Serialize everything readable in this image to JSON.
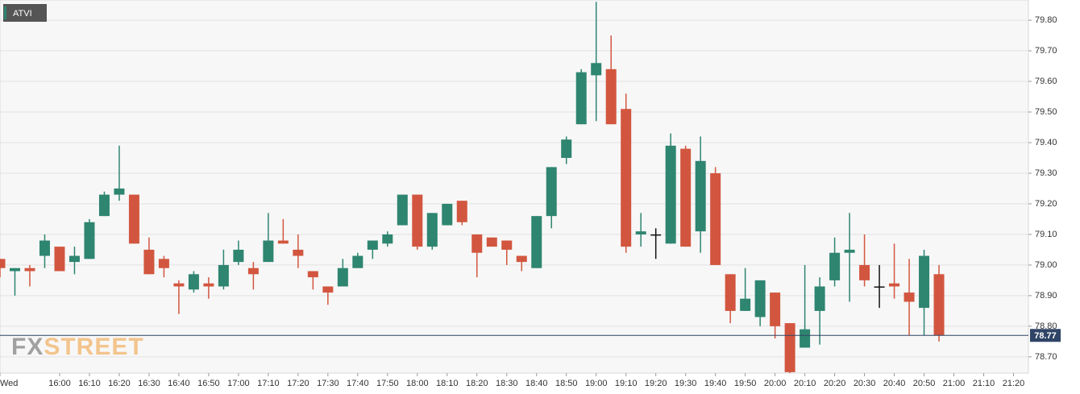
{
  "chart_data": {
    "type": "candlestick",
    "legend": "ATVI",
    "watermark": {
      "first": "FX",
      "second": "STREET"
    },
    "x": [
      "15:40",
      "15:45",
      "15:50",
      "15:55",
      "16:00",
      "16:05",
      "16:10",
      "16:15",
      "16:20",
      "16:25",
      "16:30",
      "16:35",
      "16:40",
      "16:45",
      "16:50",
      "16:55",
      "17:00",
      "17:05",
      "17:10",
      "17:15",
      "17:20",
      "17:25",
      "17:30",
      "17:35",
      "17:40",
      "17:45",
      "17:50",
      "17:55",
      "18:00",
      "18:05",
      "18:10",
      "18:15",
      "18:20",
      "18:25",
      "18:30",
      "18:35",
      "18:40",
      "18:45",
      "18:50",
      "18:55",
      "19:00",
      "19:05",
      "19:10",
      "19:15",
      "19:20",
      "19:25",
      "19:30",
      "19:35",
      "19:40",
      "19:45",
      "19:50",
      "19:55",
      "20:00",
      "20:05",
      "20:10",
      "20:15",
      "20:20",
      "20:25",
      "20:30",
      "20:35",
      "20:40",
      "20:45",
      "20:50",
      "20:55"
    ],
    "open": [
      79.02,
      78.98,
      78.99,
      79.03,
      79.06,
      79.01,
      79.02,
      79.16,
      79.23,
      79.23,
      79.05,
      79.02,
      78.94,
      78.92,
      78.94,
      78.93,
      79.01,
      78.99,
      79.01,
      79.08,
      79.05,
      78.98,
      78.93,
      78.93,
      78.99,
      79.05,
      79.07,
      79.13,
      79.23,
      79.06,
      79.13,
      79.21,
      79.1,
      79.09,
      79.08,
      79.03,
      78.99,
      79.16,
      79.35,
      79.46,
      79.62,
      79.64,
      79.51,
      79.1,
      79.1,
      79.07,
      79.38,
      79.11,
      79.3,
      78.97,
      78.85,
      78.83,
      78.91,
      78.81,
      78.73,
      78.85,
      78.95,
      79.04,
      79.0,
      78.93,
      78.94,
      78.91,
      78.86,
      78.97
    ],
    "high": [
      79.02,
      78.99,
      79.0,
      79.1,
      79.06,
      79.06,
      79.15,
      79.24,
      79.39,
      79.23,
      79.09,
      79.03,
      78.95,
      78.98,
      78.96,
      79.05,
      79.08,
      79.01,
      79.17,
      79.15,
      79.1,
      78.98,
      78.93,
      79.02,
      79.04,
      79.08,
      79.11,
      79.23,
      79.23,
      79.17,
      79.2,
      79.21,
      79.1,
      79.09,
      79.08,
      79.03,
      79.16,
      79.32,
      79.42,
      79.64,
      79.86,
      79.75,
      79.56,
      79.17,
      79.12,
      79.43,
      79.39,
      79.42,
      79.32,
      78.97,
      78.99,
      78.95,
      78.91,
      78.81,
      79.0,
      78.96,
      79.09,
      79.17,
      79.1,
      79.0,
      79.07,
      79.02,
      79.05,
      79.0
    ],
    "low": [
      78.96,
      78.9,
      78.93,
      78.99,
      78.98,
      78.97,
      79.02,
      79.16,
      79.21,
      79.07,
      78.97,
      78.96,
      78.84,
      78.91,
      78.89,
      78.92,
      79.0,
      78.92,
      79.01,
      79.07,
      78.99,
      78.92,
      78.87,
      78.93,
      78.99,
      79.02,
      79.06,
      79.13,
      79.05,
      79.05,
      79.13,
      79.13,
      78.96,
      79.06,
      79.0,
      78.98,
      78.99,
      79.12,
      79.33,
      79.46,
      79.47,
      79.46,
      79.04,
      79.06,
      79.02,
      79.07,
      79.06,
      79.04,
      79.0,
      78.81,
      78.85,
      78.8,
      78.76,
      78.64,
      78.73,
      78.74,
      78.93,
      78.88,
      78.93,
      78.86,
      78.89,
      78.77,
      78.77,
      78.75
    ],
    "close": [
      78.99,
      78.99,
      78.98,
      79.08,
      78.98,
      79.03,
      79.14,
      79.23,
      79.25,
      79.07,
      78.97,
      78.99,
      78.93,
      78.97,
      78.93,
      79.0,
      79.05,
      78.97,
      79.08,
      79.07,
      79.03,
      78.96,
      78.91,
      78.99,
      79.03,
      79.08,
      79.1,
      79.23,
      79.06,
      79.17,
      79.2,
      79.14,
      79.04,
      79.06,
      79.05,
      79.01,
      79.16,
      79.32,
      79.41,
      79.63,
      79.66,
      79.46,
      79.06,
      79.11,
      79.1,
      79.39,
      79.06,
      79.34,
      79.0,
      78.85,
      78.89,
      78.95,
      78.8,
      78.65,
      78.79,
      78.93,
      79.04,
      79.05,
      78.95,
      78.93,
      78.93,
      78.88,
      79.03,
      78.77
    ],
    "colors": {
      "up": "#2e8570",
      "down": "#d2563f",
      "flat": "#111111"
    },
    "current_price": 78.77,
    "current_price_color": "#2f4466",
    "xlim": [
      "15:40",
      "21:25"
    ],
    "ylim": [
      78.647,
      79.866
    ],
    "xticks": [
      {
        "value": "15:40",
        "label": "Wed"
      },
      "16:00",
      "16:10",
      "16:20",
      "16:30",
      "16:40",
      "16:50",
      "17:00",
      "17:10",
      "17:20",
      "17:30",
      "17:40",
      "17:50",
      "18:00",
      "18:10",
      "18:20",
      "18:30",
      "18:40",
      "18:50",
      "19:00",
      "19:10",
      "19:20",
      "19:30",
      "19:40",
      "19:50",
      "20:00",
      "20:10",
      "20:20",
      "20:30",
      "20:40",
      "20:50",
      "21:00",
      "21:10",
      "21:20"
    ],
    "yticks": [
      {
        "value": 78.7,
        "label": "78.70"
      },
      {
        "value": 78.8,
        "label": "78.80"
      },
      {
        "value": 78.9,
        "label": "78.90"
      },
      {
        "value": 79.0,
        "label": "79.00"
      },
      {
        "value": 79.1,
        "label": "79.10"
      },
      {
        "value": 79.2,
        "label": "79.20"
      },
      {
        "value": 79.3,
        "label": "79.30"
      },
      {
        "value": 79.4,
        "label": "79.40"
      },
      {
        "value": 79.5,
        "label": "79.50"
      },
      {
        "value": 79.6,
        "label": "79.60"
      },
      {
        "value": 79.7,
        "label": "79.70"
      },
      {
        "value": 79.8,
        "label": "79.80"
      }
    ],
    "grid": true
  }
}
